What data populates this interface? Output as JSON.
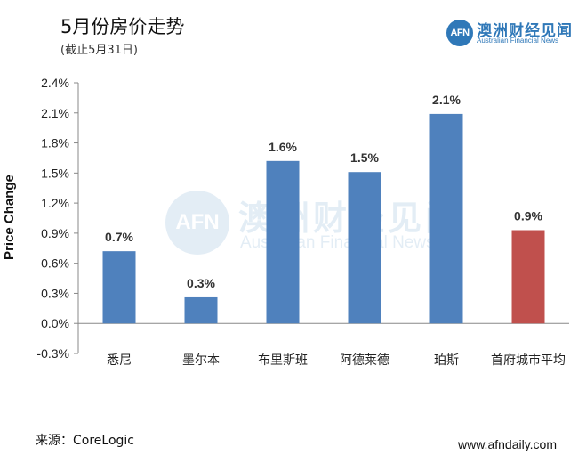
{
  "header": {
    "title": "5月份房价走势",
    "subtitle": "(截止5月31日)"
  },
  "brand": {
    "badge": "AFN",
    "name": "澳洲财经见闻",
    "tagline": "Australian Financial News",
    "color": "#2f78b8"
  },
  "chart_data": {
    "type": "bar",
    "title": "",
    "xlabel": "",
    "ylabel": "Price Change",
    "categories": [
      "悉尼",
      "墨尔本",
      "布里斯班",
      "阿德莱德",
      "珀斯",
      "首府城市平均"
    ],
    "values": [
      0.7,
      0.3,
      1.6,
      1.5,
      2.1,
      0.9
    ],
    "data_labels": [
      "0.7%",
      "0.3%",
      "1.6%",
      "1.5%",
      "2.1%",
      "0.9%"
    ],
    "actual_heights": [
      0.72,
      0.26,
      1.62,
      1.51,
      2.09,
      0.93
    ],
    "bar_colors": [
      "#4f81bd",
      "#4f81bd",
      "#4f81bd",
      "#4f81bd",
      "#4f81bd",
      "#c0504d"
    ],
    "ylim": [
      -0.3,
      2.4
    ],
    "yticks": [
      -0.3,
      0.0,
      0.3,
      0.6,
      0.9,
      1.2,
      1.5,
      1.8,
      2.1,
      2.4
    ],
    "ytick_labels": [
      "-0.3%",
      "0.0%",
      "0.3%",
      "0.6%",
      "0.9%",
      "1.2%",
      "1.5%",
      "1.8%",
      "2.1%",
      "2.4%"
    ],
    "grid": false,
    "legend": "none"
  },
  "footer": {
    "source": "来源：CoreLogic",
    "website": "www.afndaily.com"
  }
}
